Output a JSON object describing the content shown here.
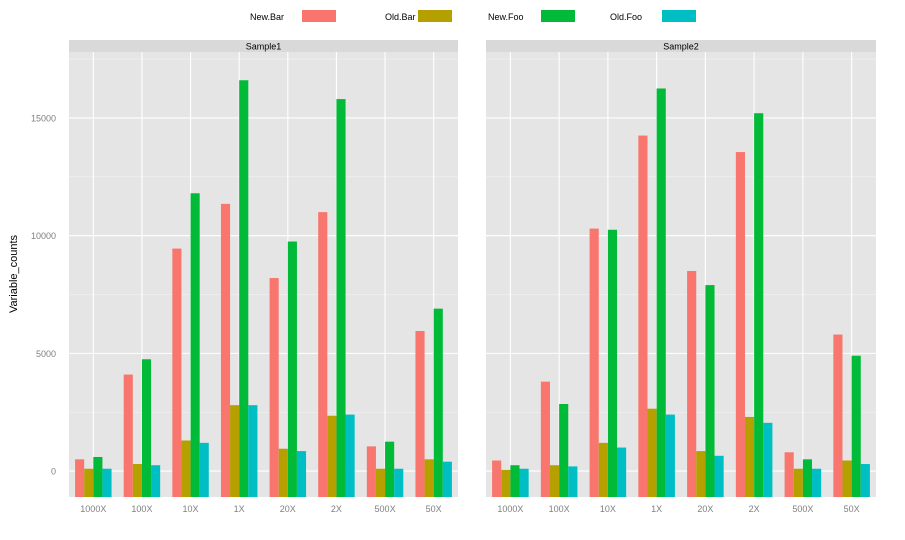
{
  "chart_data": {
    "type": "bar",
    "ylabel": "Variable_counts",
    "xlabel": "",
    "ylim": [
      -1100,
      17800
    ],
    "yticks": [
      0,
      5000,
      10000,
      15000
    ],
    "ytick_labels": [
      "0",
      "5000",
      "10000",
      "15000"
    ],
    "categories": [
      "1000X",
      "100X",
      "10X",
      "1X",
      "20X",
      "2X",
      "500X",
      "50X"
    ],
    "legend": {
      "position": "top",
      "entries": [
        {
          "name": "New.Bar",
          "color": "#F8766D"
        },
        {
          "name": "Old.Bar",
          "color": "#B5A000"
        },
        {
          "name": "New.Foo",
          "color": "#00BA38"
        },
        {
          "name": "Old.Foo",
          "color": "#00BFC4"
        }
      ]
    },
    "panels": [
      {
        "title": "Sample1",
        "series": [
          {
            "name": "New.Bar",
            "values": [
              500,
              4100,
              9450,
              11350,
              8200,
              11000,
              1050,
              5950
            ]
          },
          {
            "name": "Old.Bar",
            "values": [
              100,
              300,
              1300,
              2800,
              950,
              2350,
              100,
              500
            ]
          },
          {
            "name": "New.Foo",
            "values": [
              600,
              4750,
              11800,
              16600,
              9750,
              15800,
              1250,
              6900
            ]
          },
          {
            "name": "Old.Foo",
            "values": [
              100,
              250,
              1200,
              2800,
              850,
              2400,
              100,
              400
            ]
          }
        ]
      },
      {
        "title": "Sample2",
        "series": [
          {
            "name": "New.Bar",
            "values": [
              450,
              3800,
              10300,
              14250,
              8500,
              13550,
              800,
              5800
            ]
          },
          {
            "name": "Old.Bar",
            "values": [
              50,
              250,
              1200,
              2650,
              850,
              2300,
              100,
              450
            ]
          },
          {
            "name": "New.Foo",
            "values": [
              250,
              2850,
              10250,
              16250,
              7900,
              15200,
              500,
              4900
            ]
          },
          {
            "name": "Old.Foo",
            "values": [
              100,
              200,
              1000,
              2400,
              650,
              2050,
              100,
              300
            ]
          }
        ]
      }
    ]
  }
}
